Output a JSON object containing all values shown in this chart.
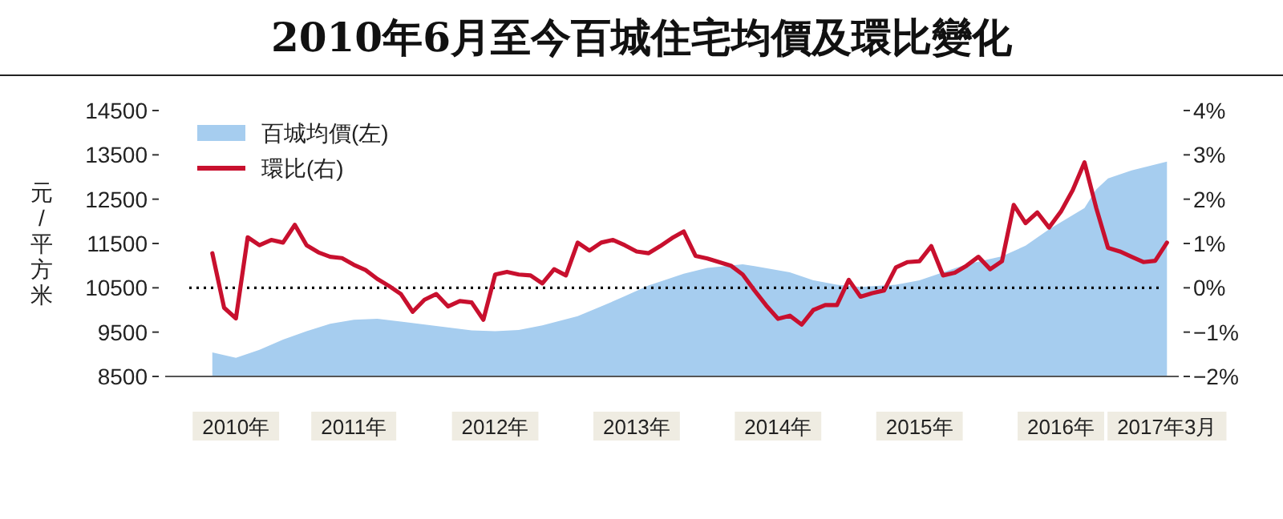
{
  "chart_data": {
    "type": "area",
    "title": "2010年6月至今百城住宅均價及環比變化",
    "ylabel": "元/平方米",
    "xlim": [
      "2010-02",
      "2017-04"
    ],
    "xticks": [
      {
        "value": "2010-08",
        "label": "2010年"
      },
      {
        "value": "2011-06",
        "label": "2011年"
      },
      {
        "value": "2012-06",
        "label": "2012年"
      },
      {
        "value": "2013-06",
        "label": "2013年"
      },
      {
        "value": "2014-06",
        "label": "2014年"
      },
      {
        "value": "2015-06",
        "label": "2015年"
      },
      {
        "value": "2016-06",
        "label": "2016年"
      },
      {
        "value": "2017-03",
        "label": "2017年3月"
      }
    ],
    "ylim": [
      8500,
      14500
    ],
    "yticks": [
      8500,
      9500,
      10500,
      11500,
      12500,
      13500,
      14500
    ],
    "y2lim": [
      -2,
      4
    ],
    "y2ticks": [
      {
        "value": -2,
        "label": "−2%"
      },
      {
        "value": -1,
        "label": "−1%"
      },
      {
        "value": 0,
        "label": "0%"
      },
      {
        "value": 1,
        "label": "1%"
      },
      {
        "value": 2,
        "label": "2%"
      },
      {
        "value": 3,
        "label": "3%"
      },
      {
        "value": 4,
        "label": "4%"
      }
    ],
    "ref_lines": [
      {
        "axis": "y2",
        "value": 0,
        "color": "#000000",
        "line_style": "dotted"
      }
    ],
    "legend": "top left",
    "grid": false,
    "series": [
      {
        "name": "百城均價(左)",
        "color": "#a6cdef",
        "x": [
          "2010-06",
          "2010-08",
          "2010-10",
          "2010-12",
          "2011-02",
          "2011-04",
          "2011-06",
          "2011-08",
          "2011-10",
          "2012-01",
          "2012-04",
          "2012-06",
          "2012-08",
          "2012-10",
          "2013-01",
          "2013-03",
          "2013-05",
          "2013-07",
          "2013-10",
          "2013-12",
          "2014-03",
          "2014-04",
          "2014-07",
          "2014-09",
          "2014-11",
          "2015-01",
          "2015-04",
          "2015-06",
          "2015-08",
          "2015-10",
          "2016-01",
          "2016-03",
          "2016-05",
          "2016-08",
          "2016-09",
          "2016-10",
          "2016-12",
          "2017-03"
        ],
        "values": [
          9040,
          8920,
          9100,
          9330,
          9520,
          9690,
          9780,
          9800,
          9740,
          9640,
          9540,
          9520,
          9550,
          9650,
          9860,
          10080,
          10310,
          10550,
          10820,
          10950,
          11030,
          10990,
          10850,
          10670,
          10570,
          10520,
          10570,
          10670,
          10850,
          11030,
          11210,
          11450,
          11820,
          12300,
          12720,
          12970,
          13150,
          13350
        ]
      },
      {
        "name": "環比(右)",
        "type": "line",
        "axis": "y2",
        "color": "#c8102e",
        "x": [
          "2010-06",
          "2010-07",
          "2010-08",
          "2010-09",
          "2010-10",
          "2010-11",
          "2010-12",
          "2011-01",
          "2011-02",
          "2011-03",
          "2011-04",
          "2011-05",
          "2011-06",
          "2011-07",
          "2011-08",
          "2011-09",
          "2011-10",
          "2011-11",
          "2011-12",
          "2012-01",
          "2012-02",
          "2012-03",
          "2012-04",
          "2012-05",
          "2012-06",
          "2012-07",
          "2012-08",
          "2012-09",
          "2012-10",
          "2012-11",
          "2012-12",
          "2013-01",
          "2013-02",
          "2013-03",
          "2013-04",
          "2013-05",
          "2013-06",
          "2013-07",
          "2013-08",
          "2013-09",
          "2013-10",
          "2013-11",
          "2013-12",
          "2014-01",
          "2014-02",
          "2014-03",
          "2014-04",
          "2014-05",
          "2014-06",
          "2014-07",
          "2014-08",
          "2014-09",
          "2014-10",
          "2014-11",
          "2014-12",
          "2015-01",
          "2015-02",
          "2015-03",
          "2015-04",
          "2015-05",
          "2015-06",
          "2015-07",
          "2015-08",
          "2015-09",
          "2015-10",
          "2015-11",
          "2015-12",
          "2016-01",
          "2016-02",
          "2016-03",
          "2016-04",
          "2016-05",
          "2016-06",
          "2016-07",
          "2016-08",
          "2016-09",
          "2016-10",
          "2016-11",
          "2016-12",
          "2017-01",
          "2017-02",
          "2017-03"
        ],
        "values": [
          0.78,
          -0.45,
          -0.69,
          1.14,
          0.96,
          1.08,
          1.02,
          1.42,
          0.96,
          0.8,
          0.7,
          0.67,
          0.52,
          0.4,
          0.2,
          0.04,
          -0.14,
          -0.54,
          -0.27,
          -0.14,
          -0.42,
          -0.3,
          -0.33,
          -0.72,
          0.3,
          0.36,
          0.3,
          0.28,
          0.1,
          0.42,
          0.28,
          1.02,
          0.84,
          1.02,
          1.08,
          0.96,
          0.82,
          0.78,
          0.94,
          1.12,
          1.27,
          0.72,
          0.66,
          0.58,
          0.5,
          0.3,
          -0.06,
          -0.4,
          -0.7,
          -0.63,
          -0.83,
          -0.5,
          -0.39,
          -0.39,
          0.18,
          -0.2,
          -0.12,
          -0.06,
          0.46,
          0.58,
          0.6,
          0.94,
          0.28,
          0.34,
          0.5,
          0.7,
          0.42,
          0.6,
          1.87,
          1.46,
          1.7,
          1.36,
          1.72,
          2.2,
          2.83,
          1.8,
          0.9,
          0.82,
          0.7,
          0.58,
          0.61,
          1.02
        ]
      }
    ]
  }
}
